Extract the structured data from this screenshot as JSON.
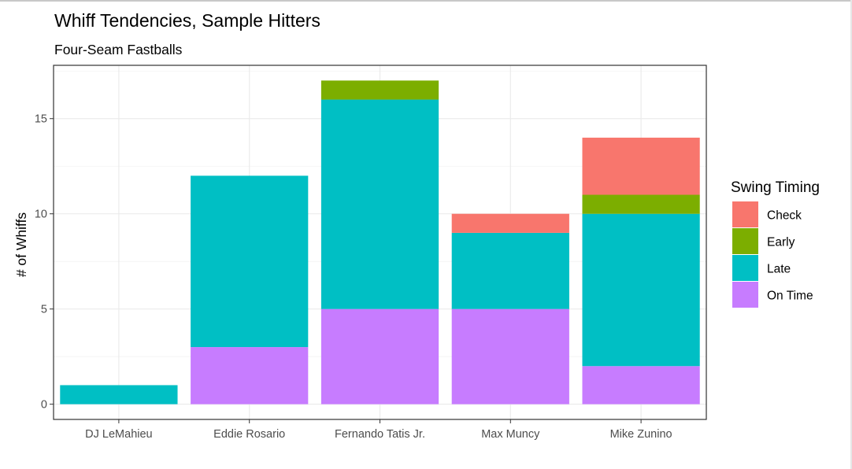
{
  "chart_data": {
    "type": "bar",
    "stacked": true,
    "title": "Whiff Tendencies, Sample Hitters",
    "subtitle": "Four-Seam Fastballs",
    "xlabel": "",
    "ylabel": "# of Whiffs",
    "ylim": [
      -0.8,
      17.8
    ],
    "yticks": [
      0,
      5,
      10,
      15
    ],
    "grid": true,
    "legend_placement": "right",
    "legend_title": "Swing Timing",
    "categories": [
      "DJ LeMahieu",
      "Eddie Rosario",
      "Fernando Tatis Jr.",
      "Max Muncy",
      "Mike Zunino"
    ],
    "series": [
      {
        "name": "Check",
        "color": "#F8766D",
        "values": [
          0,
          0,
          0,
          1,
          3
        ]
      },
      {
        "name": "Early",
        "color": "#7CAE00",
        "values": [
          0,
          0,
          1,
          0,
          1
        ]
      },
      {
        "name": "Late",
        "color": "#00BFC4",
        "values": [
          1,
          9,
          11,
          4,
          8
        ]
      },
      {
        "name": "On Time",
        "color": "#C77CFF",
        "values": [
          0,
          3,
          5,
          5,
          2
        ]
      }
    ]
  }
}
